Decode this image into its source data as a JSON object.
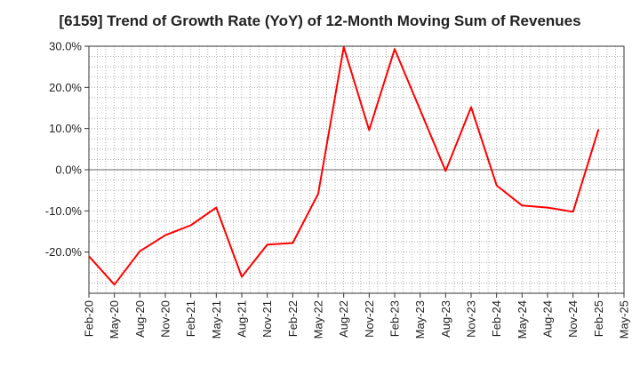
{
  "chart_data": {
    "type": "line",
    "title": "[6159]  Trend of Growth Rate (YoY) of 12-Month Moving Sum of Revenues",
    "xlabel": "",
    "ylabel": "",
    "ylim": [
      -30,
      30
    ],
    "y_ticks": [
      "30.0%",
      "20.0%",
      "10.0%",
      "0.0%",
      "-10.0%",
      "-20.0%"
    ],
    "y_tick_values": [
      30,
      20,
      10,
      0,
      -10,
      -20
    ],
    "x_ticks": [
      "Feb-20",
      "May-20",
      "Aug-20",
      "Nov-20",
      "Feb-21",
      "May-21",
      "Aug-21",
      "Nov-21",
      "Feb-22",
      "May-22",
      "Aug-22",
      "Nov-22",
      "Feb-23",
      "May-23",
      "Aug-23",
      "Nov-23",
      "Feb-24",
      "May-24",
      "Aug-24",
      "Nov-24",
      "Feb-25",
      "May-25"
    ],
    "grid": true,
    "color": "#ff0000",
    "series": [
      {
        "values": [
          -21.0,
          -27.9,
          -19.8,
          -15.9,
          -13.5,
          -9.2,
          -26.0,
          -18.2,
          -17.8,
          -5.8,
          29.8,
          9.6,
          29.3,
          14.5,
          -0.3,
          15.2,
          -3.8,
          -8.7,
          -9.2,
          -10.2,
          9.8
        ]
      }
    ]
  }
}
